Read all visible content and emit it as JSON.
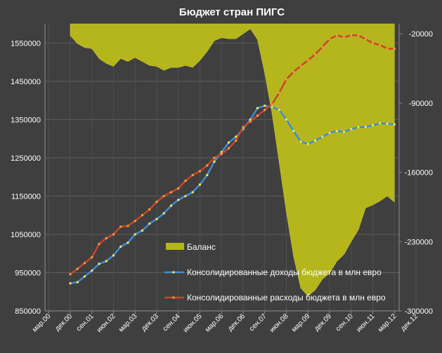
{
  "chart_data": {
    "type": "line",
    "title": "Бюджет стран ПИГС",
    "x_tick_labels": [
      "мар.00",
      "дек.00",
      "сен.01",
      "июн.02",
      "мар.03",
      "дек.03",
      "сен.04",
      "июн.05",
      "мар.06",
      "дек.06",
      "сен.07",
      "июн.08",
      "мар.09",
      "дек.09",
      "сен.10",
      "июн.11",
      "мар.12",
      "дек.12"
    ],
    "y_left": {
      "range": [
        850000,
        1600000
      ],
      "ticks": [
        850000,
        950000,
        1050000,
        1150000,
        1250000,
        1350000,
        1450000,
        1550000
      ],
      "tick_labels": [
        "850000",
        "950000",
        "1050000",
        "1150000",
        "1250000",
        "1350000",
        "1450000",
        "1550000"
      ]
    },
    "y_right": {
      "range": [
        -300000,
        -10000
      ],
      "ticks": [
        -20000,
        -90000,
        -160000,
        -230000,
        -300000
      ],
      "tick_labels": [
        "-20000",
        "-90000",
        "-160000",
        "-230000",
        "-300000"
      ]
    },
    "quarters_start": "дек.00",
    "quarters_end": "дек.12",
    "series": [
      {
        "name": "Баланс",
        "kind": "area",
        "axis": "right",
        "color": "#b5b51c",
        "values": [
          -22000,
          -30000,
          -34000,
          -35000,
          -45000,
          -50000,
          -53000,
          -45000,
          -48000,
          -44000,
          -48000,
          -52000,
          -53000,
          -57000,
          -54000,
          -54000,
          -52000,
          -54000,
          -47000,
          -38000,
          -27000,
          -24000,
          -25000,
          -25000,
          -20000,
          -15000,
          -26000,
          -60000,
          -100000,
          -150000,
          -200000,
          -245000,
          -277000,
          -285000,
          -279000,
          -268000,
          -262000,
          -250000,
          -243000,
          -230000,
          -218000,
          -196000,
          -193000,
          -189000,
          -184000,
          -190000
        ]
      },
      {
        "name": "Консолидированные доходы бюджета в млн евро",
        "kind": "line",
        "axis": "left",
        "color": "#3e8ed6",
        "marker_color": "#f2e85a",
        "values": [
          922000,
          925000,
          940000,
          955000,
          973000,
          980000,
          995000,
          1018000,
          1028000,
          1050000,
          1060000,
          1078000,
          1090000,
          1105000,
          1125000,
          1140000,
          1150000,
          1160000,
          1180000,
          1205000,
          1240000,
          1265000,
          1290000,
          1305000,
          1325000,
          1350000,
          1380000,
          1386000,
          1383000,
          1375000,
          1350000,
          1320000,
          1292000,
          1286000,
          1295000,
          1305000,
          1315000,
          1320000,
          1318000,
          1325000,
          1330000,
          1331000,
          1335000,
          1340000,
          1339000,
          1337000
        ]
      },
      {
        "name": "Консолидированные расходы бюджета в млн евро",
        "kind": "line",
        "axis": "left",
        "color": "#c8462c",
        "marker_color": "#f0a040",
        "values": [
          946000,
          960000,
          975000,
          990000,
          1025000,
          1040000,
          1050000,
          1070000,
          1072000,
          1085000,
          1100000,
          1115000,
          1135000,
          1150000,
          1160000,
          1170000,
          1190000,
          1205000,
          1215000,
          1230000,
          1250000,
          1260000,
          1275000,
          1295000,
          1330000,
          1345000,
          1360000,
          1375000,
          1390000,
          1420000,
          1455000,
          1475000,
          1490000,
          1505000,
          1520000,
          1540000,
          1560000,
          1570000,
          1565000,
          1570000,
          1570000,
          1560000,
          1550000,
          1545000,
          1535000,
          1535000
        ]
      }
    ],
    "legend": {
      "placement": "bottom-center"
    }
  }
}
